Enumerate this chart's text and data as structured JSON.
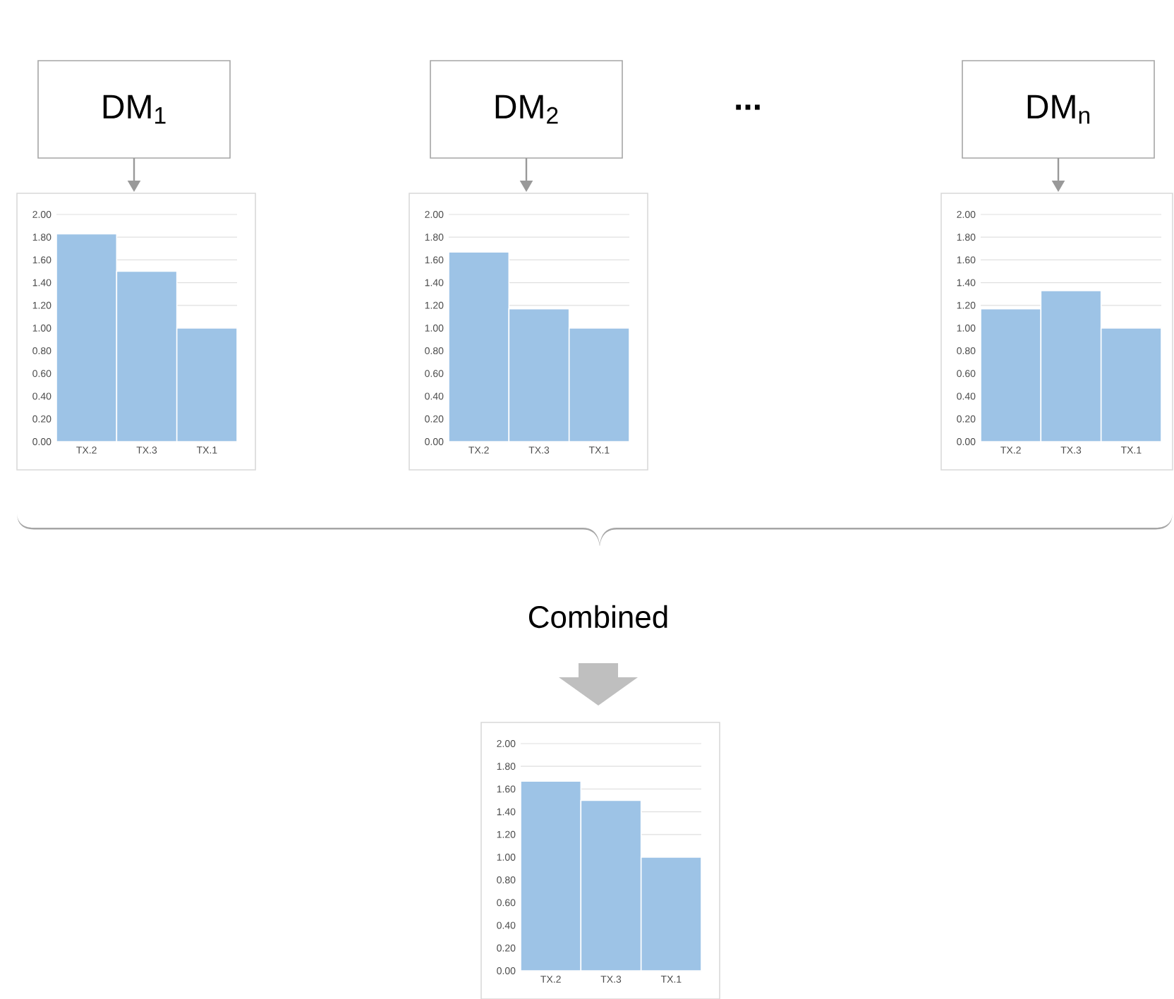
{
  "chart_data": [
    {
      "type": "bar",
      "title": "DM$_{1}$",
      "categories": [
        "TX.2",
        "TX.3",
        "TX.1"
      ],
      "values": [
        1.83,
        1.5,
        1.0
      ],
      "color": "#9dc3e6",
      "ylim": [
        0,
        2
      ],
      "yticks": [
        {
          "value": 0,
          "label": "0.00"
        },
        {
          "value": 0.2,
          "label": "0.20"
        },
        {
          "value": 0.4,
          "label": "0.40"
        },
        {
          "value": 0.6,
          "label": "0.60"
        },
        {
          "value": 0.8,
          "label": "0.80"
        },
        {
          "value": 1.0,
          "label": "1.00"
        },
        {
          "value": 1.2,
          "label": "1.20"
        },
        {
          "value": 1.4,
          "label": "1.40"
        },
        {
          "value": 1.6,
          "label": "1.60"
        },
        {
          "value": 1.8,
          "label": "1.80"
        },
        {
          "value": 2.0,
          "label": "2.00"
        }
      ],
      "grid": "y"
    },
    {
      "type": "bar",
      "title": "DM$_{2}$",
      "categories": [
        "TX.2",
        "TX.3",
        "TX.1"
      ],
      "values": [
        1.67,
        1.17,
        1.0
      ],
      "color": "#9dc3e6",
      "ylim": [
        0,
        2
      ],
      "yticks": [
        {
          "value": 0,
          "label": "0.00"
        },
        {
          "value": 0.2,
          "label": "0.20"
        },
        {
          "value": 0.4,
          "label": "0.40"
        },
        {
          "value": 0.6,
          "label": "0.60"
        },
        {
          "value": 0.8,
          "label": "0.80"
        },
        {
          "value": 1.0,
          "label": "1.00"
        },
        {
          "value": 1.2,
          "label": "1.20"
        },
        {
          "value": 1.4,
          "label": "1.40"
        },
        {
          "value": 1.6,
          "label": "1.60"
        },
        {
          "value": 1.8,
          "label": "1.80"
        },
        {
          "value": 2.0,
          "label": "2.00"
        }
      ],
      "grid": "y",
      "annotations": [
        "..."
      ]
    },
    {
      "type": "bar",
      "title": "DM$_{n}$",
      "categories": [
        "TX.2",
        "TX.3",
        "TX.1"
      ],
      "values": [
        1.17,
        1.33,
        1.0
      ],
      "color": "#9dc3e6",
      "ylim": [
        0,
        2
      ],
      "yticks": [
        {
          "value": 0,
          "label": "0.00"
        },
        {
          "value": 0.2,
          "label": "0.20"
        },
        {
          "value": 0.4,
          "label": "0.40"
        },
        {
          "value": 0.6,
          "label": "0.60"
        },
        {
          "value": 0.8,
          "label": "0.80"
        },
        {
          "value": 1.0,
          "label": "1.00"
        },
        {
          "value": 1.2,
          "label": "1.20"
        },
        {
          "value": 1.4,
          "label": "1.40"
        },
        {
          "value": 1.6,
          "label": "1.60"
        },
        {
          "value": 1.8,
          "label": "1.80"
        },
        {
          "value": 2.0,
          "label": "2.00"
        }
      ],
      "grid": "y"
    },
    {
      "type": "bar",
      "title": "Combined",
      "categories": [
        "TX.2",
        "TX.3",
        "TX.1"
      ],
      "values": [
        1.67,
        1.5,
        1.0
      ],
      "color": "#9dc3e6",
      "ylim": [
        0,
        2
      ],
      "yticks": [
        {
          "value": 0,
          "label": "0.00"
        },
        {
          "value": 0.2,
          "label": "0.20"
        },
        {
          "value": 0.4,
          "label": "0.40"
        },
        {
          "value": 0.6,
          "label": "0.60"
        },
        {
          "value": 0.8,
          "label": "0.80"
        },
        {
          "value": 1.0,
          "label": "1.00"
        },
        {
          "value": 1.2,
          "label": "1.20"
        },
        {
          "value": 1.4,
          "label": "1.40"
        },
        {
          "value": 1.6,
          "label": "1.60"
        },
        {
          "value": 1.8,
          "label": "1.80"
        },
        {
          "value": 2.0,
          "label": "2.00"
        }
      ],
      "grid": "y"
    }
  ]
}
